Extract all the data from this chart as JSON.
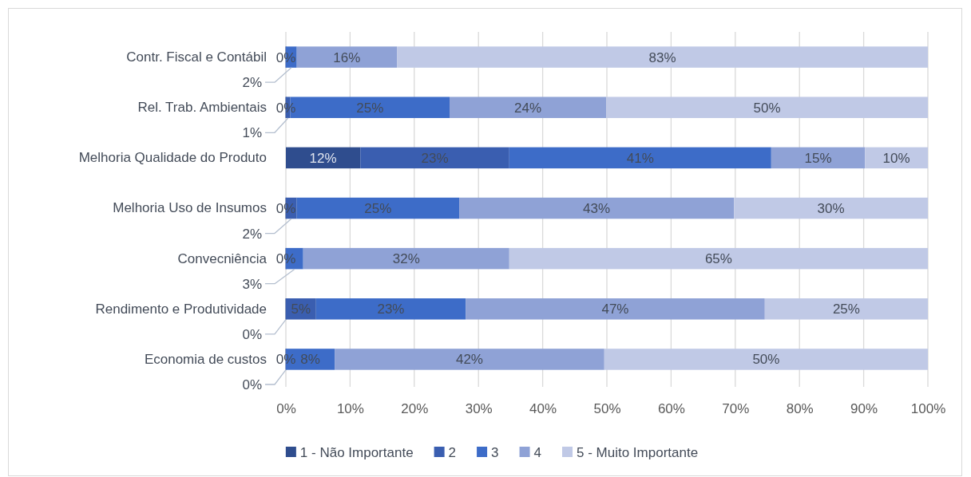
{
  "chart_data": {
    "type": "bar",
    "orientation": "horizontal",
    "stacked": true,
    "categories": [
      "Contr. Fiscal e Contábil",
      "Rel. Trab. Ambientais",
      "Melhoria Qualidade do Produto",
      "Melhoria Uso de Insumos",
      "Convecniência",
      "Rendimento e Produtividade",
      "Economia de custos"
    ],
    "series": [
      {
        "name": "1 - Não Importante",
        "color": "#2f4d8e",
        "values": [
          0,
          0,
          11.6,
          0,
          0,
          0,
          0
        ],
        "value_labels": [
          "0%",
          "0%",
          "12%",
          "0%",
          "0%",
          "0%",
          "0%"
        ]
      },
      {
        "name": "2",
        "color": "#3a5eb0",
        "values": [
          0,
          0.7,
          23.2,
          1.7,
          0,
          4.7,
          0
        ],
        "value_labels": [
          null,
          "1%",
          "23%",
          "2%",
          null,
          "5%",
          "0%"
        ]
      },
      {
        "name": "3",
        "color": "#3d6cc8",
        "values": [
          1.7,
          24.8,
          40.8,
          25.3,
          2.7,
          23.3,
          7.6
        ],
        "value_labels": [
          "2%",
          "25%",
          "41%",
          "25%",
          "3%",
          "23%",
          "8%"
        ]
      },
      {
        "name": "4",
        "color": "#8fa2d6",
        "values": [
          15.6,
          24.4,
          14.6,
          42.8,
          32.1,
          46.6,
          42
        ],
        "value_labels": [
          "16%",
          "24%",
          "15%",
          "43%",
          "32%",
          "47%",
          "42%"
        ]
      },
      {
        "name": "5 - Muito Importante",
        "color": "#c0c9e6",
        "values": [
          82.7,
          50.1,
          9.8,
          30.2,
          65.2,
          25.4,
          50.4
        ],
        "value_labels": [
          "83%",
          "50%",
          "10%",
          "30%",
          "65%",
          "25%",
          "50%"
        ]
      }
    ],
    "xlim": [
      0,
      100
    ],
    "xticks": [
      {
        "value": 0,
        "label": "0%"
      },
      {
        "value": 10,
        "label": "10%"
      },
      {
        "value": 20,
        "label": "20%"
      },
      {
        "value": 30,
        "label": "30%"
      },
      {
        "value": 40,
        "label": "40%"
      },
      {
        "value": 50,
        "label": "50%"
      },
      {
        "value": 60,
        "label": "60%"
      },
      {
        "value": 70,
        "label": "70%"
      },
      {
        "value": 80,
        "label": "80%"
      },
      {
        "value": 90,
        "label": "90%"
      },
      {
        "value": 100,
        "label": "100%"
      }
    ],
    "grid": "x",
    "legend": "bottom"
  }
}
